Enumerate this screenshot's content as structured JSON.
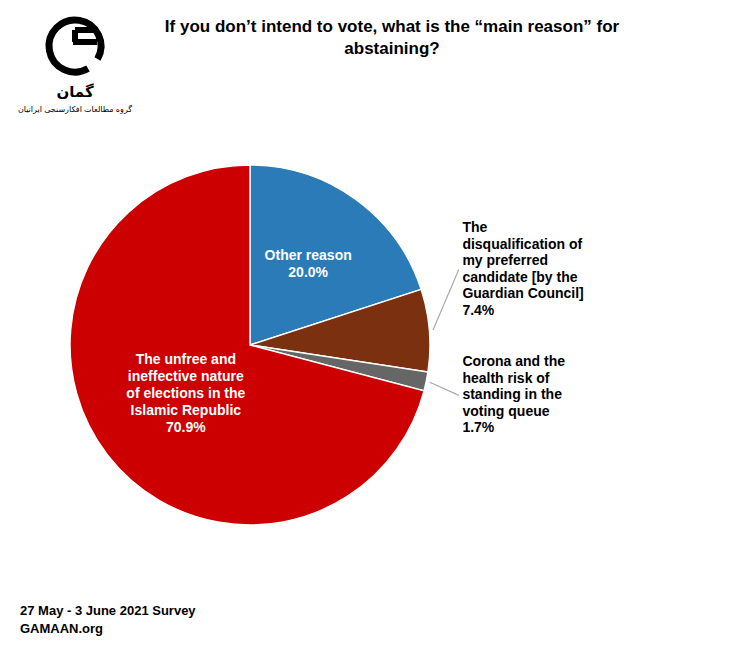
{
  "chart_data": {
    "type": "pie",
    "title": "If you don’t intend to vote, what is the “main reason” for\nabstaining?",
    "categories": [
      "Other reason",
      "The\ndisqualification of\nmy preferred\ncandidate [by the\nGuardian Council]",
      "Corona and the\nhealth risk of\nstanding in the\nvoting queue",
      "The unfree and\nineffective nature\nof elections in the\nIslamic Republic"
    ],
    "values": [
      20.0,
      7.4,
      1.7,
      70.9
    ],
    "value_labels": [
      "20.0%",
      "7.4%",
      "1.7%",
      "70.9%"
    ],
    "data_labels": true,
    "colors": [
      "#2B7BB9",
      "#7B3010",
      "#666666",
      "#CC0000"
    ],
    "annotations": [
      "27 May - 3 June 2021 Survey",
      "GAMAAN.org",
      "گمان",
      "گروه مطالعات افکارسنجی ایرانیان"
    ]
  }
}
